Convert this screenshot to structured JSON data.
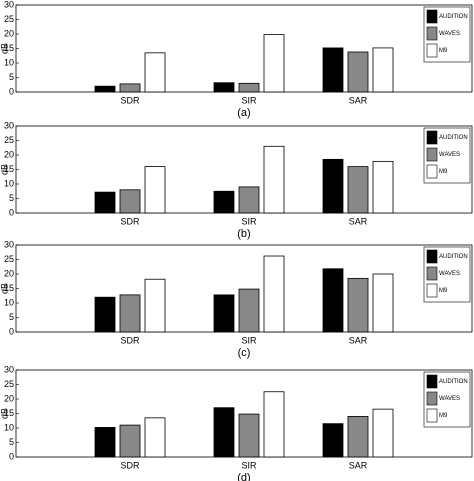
{
  "chart_data": [
    {
      "type": "bar",
      "caption": "(a)",
      "ylabel": "dB",
      "categories": [
        "SDR",
        "SIR",
        "SAR"
      ],
      "series": [
        {
          "name": "AUDITION",
          "color": "#000000",
          "values": [
            2,
            3.2,
            15.2
          ]
        },
        {
          "name": "WAVES",
          "color": "#888888",
          "values": [
            2.8,
            3,
            13.8
          ]
        },
        {
          "name": "M9",
          "color": "#ffffff",
          "values": [
            13.5,
            19.8,
            15.2
          ]
        }
      ],
      "ylim": [
        0,
        30
      ],
      "yticks": [
        0,
        5,
        10,
        15,
        20,
        25,
        30
      ],
      "legend": "upper right"
    },
    {
      "type": "bar",
      "caption": "(b)",
      "ylabel": "dB",
      "categories": [
        "SDR",
        "SIR",
        "SAR"
      ],
      "series": [
        {
          "name": "AUDITION",
          "color": "#000000",
          "values": [
            7.2,
            7.5,
            18.5
          ]
        },
        {
          "name": "WAVES",
          "color": "#888888",
          "values": [
            8,
            9,
            16
          ]
        },
        {
          "name": "M9",
          "color": "#ffffff",
          "values": [
            16,
            23,
            17.8
          ]
        }
      ],
      "ylim": [
        0,
        30
      ],
      "yticks": [
        0,
        5,
        10,
        15,
        20,
        25,
        30
      ],
      "legend": "upper right"
    },
    {
      "type": "bar",
      "caption": "(c)",
      "ylabel": "dB",
      "categories": [
        "SDR",
        "SIR",
        "SAR"
      ],
      "series": [
        {
          "name": "AUDITION",
          "color": "#000000",
          "values": [
            12,
            12.8,
            21.8
          ]
        },
        {
          "name": "WAVES",
          "color": "#888888",
          "values": [
            12.8,
            14.8,
            18.5
          ]
        },
        {
          "name": "M9",
          "color": "#ffffff",
          "values": [
            18.2,
            26.2,
            20
          ]
        }
      ],
      "ylim": [
        0,
        30
      ],
      "yticks": [
        0,
        5,
        10,
        15,
        20,
        25,
        30
      ],
      "legend": "upper right"
    },
    {
      "type": "bar",
      "caption": "(d)",
      "ylabel": "dB",
      "categories": [
        "SDR",
        "SIR",
        "SAR"
      ],
      "series": [
        {
          "name": "AUDITION",
          "color": "#000000",
          "values": [
            10.2,
            17,
            11.5
          ]
        },
        {
          "name": "WAVES",
          "color": "#888888",
          "values": [
            11,
            14.8,
            14
          ]
        },
        {
          "name": "M9",
          "color": "#ffffff",
          "values": [
            13.5,
            22.5,
            16.5
          ]
        }
      ],
      "ylim": [
        0,
        30
      ],
      "yticks": [
        0,
        5,
        10,
        15,
        20,
        25,
        30
      ],
      "legend": "upper right"
    }
  ]
}
